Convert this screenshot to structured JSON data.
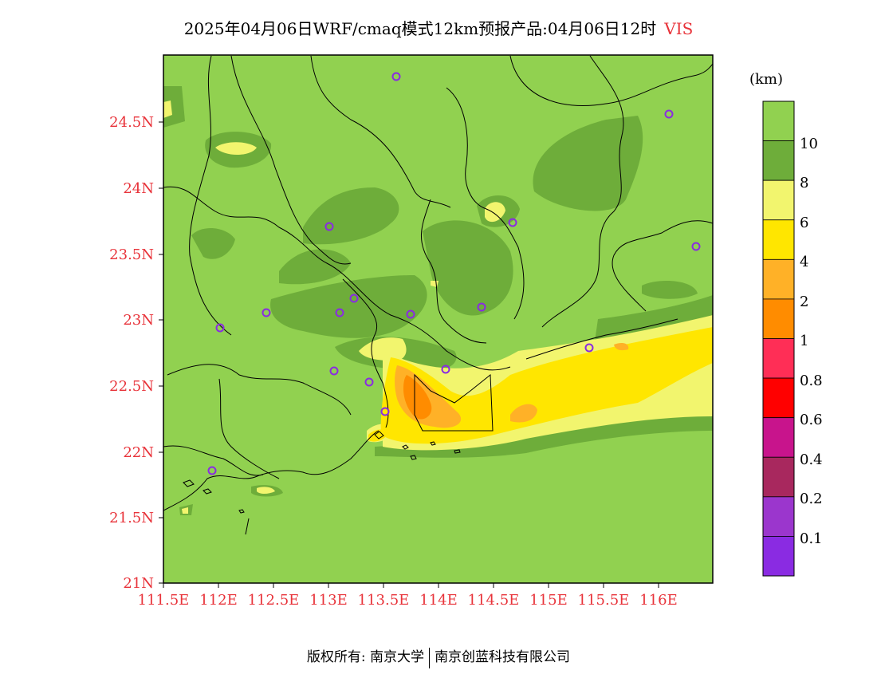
{
  "title": {
    "main": "2025年04月06日WRF/cmaq模式12km预报产品:04月06日12时",
    "variable": "VIS"
  },
  "axes": {
    "y_ticks": [
      "24.5N",
      "24N",
      "23.5N",
      "23N",
      "22.5N",
      "22N",
      "21.5N",
      "21N"
    ],
    "x_ticks": [
      "111.5E",
      "112E",
      "112.5E",
      "113E",
      "113.5E",
      "114E",
      "114.5E",
      "115E",
      "115.5E",
      "116E"
    ]
  },
  "colorbar": {
    "unit": "(km)",
    "labels": [
      "10",
      "8",
      "6",
      "4",
      "2",
      "1",
      "0.8",
      "0.6",
      "0.4",
      "0.2",
      "0.1"
    ],
    "colors": [
      "#91d150",
      "#6ead3a",
      "#f2f56e",
      "#ffe600",
      "#ffb127",
      "#ff8c00",
      "#ff2e56",
      "#ff0000",
      "#c8148c",
      "#a8285e",
      "#9b36cd",
      "#8a2be2"
    ]
  },
  "map": {
    "background_color": "#91d150",
    "station_color": "#8a2be2"
  },
  "footer": {
    "left": "版权所有: 南京大学",
    "right": "南京创蓝科技有限公司"
  }
}
